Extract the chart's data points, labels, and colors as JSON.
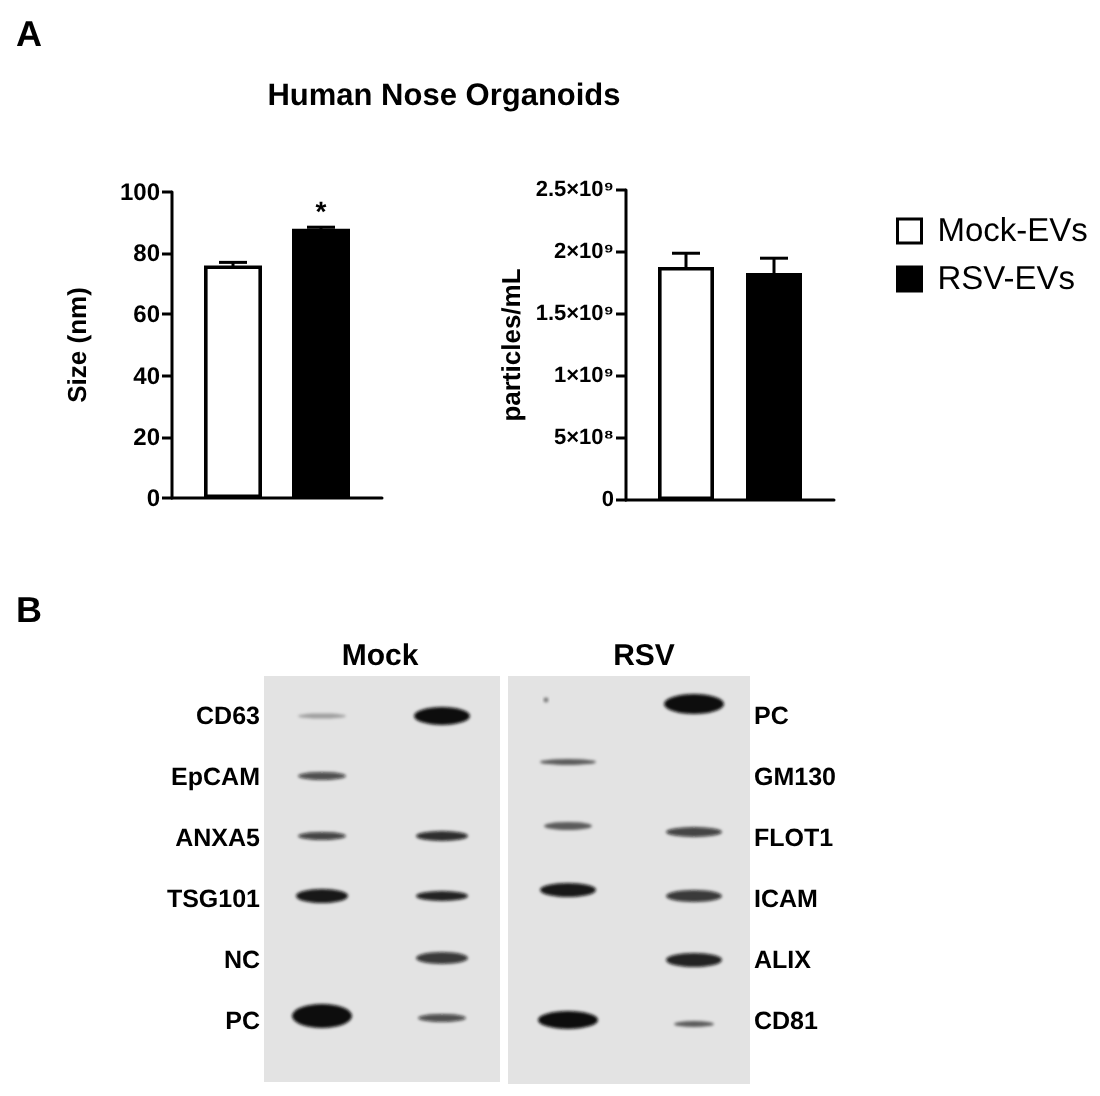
{
  "chart_data": [
    {
      "type": "bar",
      "title": "Human Nose Organoids",
      "annotations": [
        "A",
        "*"
      ],
      "categories": [
        null
      ],
      "ylabel": "Size (nm)",
      "ylim": [
        0,
        100
      ],
      "yticks": [
        0,
        20,
        40,
        60,
        80,
        100
      ],
      "series": [
        {
          "color": "#ffffff",
          "values": [
            76
          ],
          "errors": [
            1
          ]
        },
        {
          "color": "#000000",
          "values": [
            88
          ],
          "errors": [
            0.5
          ]
        }
      ]
    },
    {
      "type": "bar",
      "categories": [
        null
      ],
      "ylabel": "particles/mL",
      "ylim": [
        0,
        2500000000
      ],
      "yticks": [
        0,
        {
          "value": 500000000,
          "label": "5×10⁸"
        },
        {
          "value": 1000000000,
          "label": "1×10⁹"
        },
        {
          "value": 1500000000,
          "label": "1.5×10⁹"
        },
        {
          "value": 2000000000,
          "label": "2×10⁹"
        },
        {
          "value": 2500000000,
          "label": "2.5×10⁹"
        }
      ],
      "legend": "right",
      "series": [
        {
          "name": "Mock-EVs",
          "color": "#ffffff",
          "values": [
            1880000000
          ],
          "errors": [
            110000000
          ]
        },
        {
          "name": "RSV-EVs",
          "color": "#000000",
          "values": [
            1830000000
          ],
          "errors": [
            120000000
          ]
        }
      ]
    },
    {
      "type": "other",
      "annotations": [
        "B",
        "Mock",
        "RSV",
        "CD63",
        "EpCAM",
        "ANXA5",
        "TSG101",
        "NC",
        "PC",
        "PC",
        "GM130",
        "FLOT1",
        "ICAM",
        "ALIX",
        "CD81"
      ]
    }
  ]
}
